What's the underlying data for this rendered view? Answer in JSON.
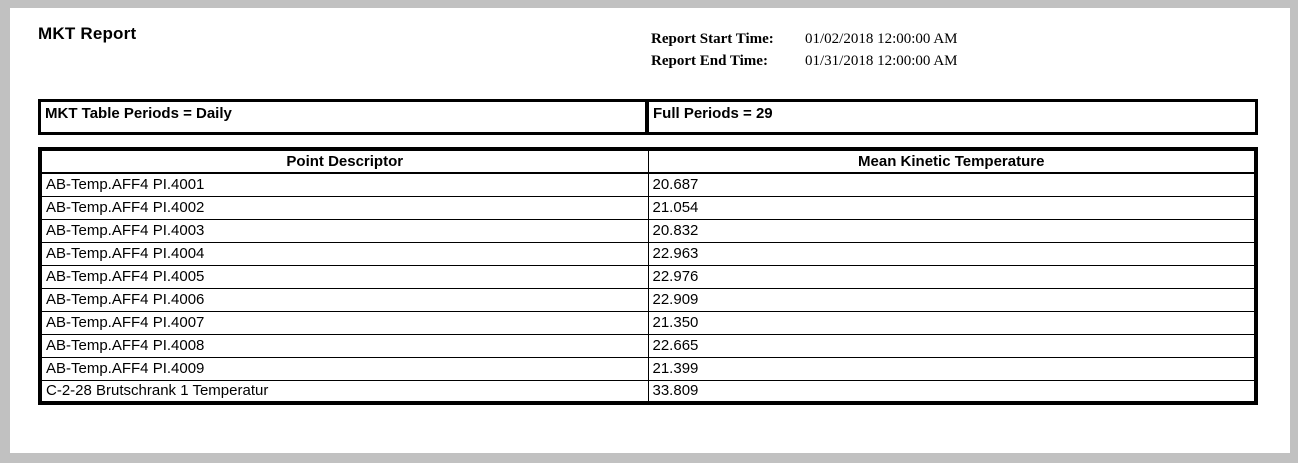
{
  "header": {
    "title": "MKT Report",
    "report_start_label": "Report Start Time:",
    "report_start_value": "01/02/2018 12:00:00 AM",
    "report_end_label": "Report End Time:",
    "report_end_value": "01/31/2018 12:00:00 AM"
  },
  "summary": {
    "table_periods": "MKT Table Periods = Daily",
    "full_periods": "Full Periods = 29"
  },
  "table": {
    "headers": [
      "Point Descriptor",
      "Mean Kinetic Temperature"
    ],
    "rows": [
      {
        "descriptor": "AB-Temp.AFF4 PI.4001",
        "value": "20.687"
      },
      {
        "descriptor": "AB-Temp.AFF4 PI.4002",
        "value": "21.054"
      },
      {
        "descriptor": "AB-Temp.AFF4 PI.4003",
        "value": "20.832"
      },
      {
        "descriptor": "AB-Temp.AFF4 PI.4004",
        "value": "22.963"
      },
      {
        "descriptor": "AB-Temp.AFF4 PI.4005",
        "value": "22.976"
      },
      {
        "descriptor": "AB-Temp.AFF4 PI.4006",
        "value": "22.909"
      },
      {
        "descriptor": "AB-Temp.AFF4 PI.4007",
        "value": "21.350"
      },
      {
        "descriptor": "AB-Temp.AFF4 PI.4008",
        "value": "22.665"
      },
      {
        "descriptor": "AB-Temp.AFF4 PI.4009",
        "value": "21.399"
      },
      {
        "descriptor": "C-2-28 Brutschrank 1 Temperatur",
        "value": "33.809"
      }
    ]
  },
  "colors": {
    "frame_gray": "#c1c1c1",
    "page_white": "#ffffff",
    "border_black": "#000000",
    "text_black": "#000000"
  }
}
